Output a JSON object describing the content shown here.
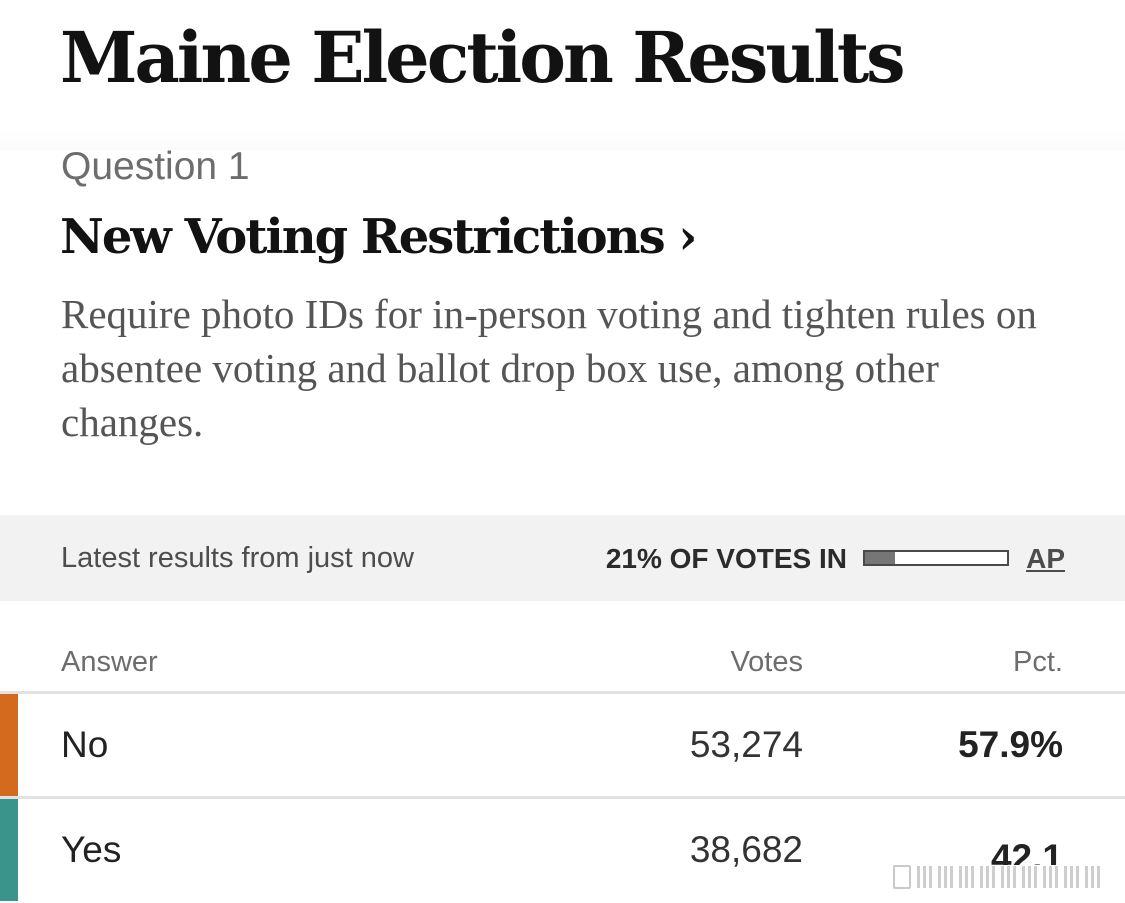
{
  "page": {
    "title": "Maine Election Results"
  },
  "question": {
    "number_label": "Question 1",
    "title": "New Voting Restrictions ›",
    "description": "Require photo IDs for in-person voting and tighten rules on absentee voting and ballot drop box use, among other changes."
  },
  "status": {
    "updated_text": "Latest results from just now",
    "votes_in_text": "21% OF VOTES IN",
    "reporting_fraction": 0.21,
    "source_label": "AP"
  },
  "table": {
    "headers": {
      "answer": "Answer",
      "votes": "Votes",
      "pct": "Pct."
    },
    "rows": [
      {
        "answer": "No",
        "votes": "53,274",
        "pct": "57.9%",
        "color": "#d46a1e"
      },
      {
        "answer": "Yes",
        "votes": "38,682",
        "pct": "42.1",
        "color": "#3a948c"
      }
    ]
  },
  "colors": {
    "no_swatch": "#d46a1e",
    "yes_swatch": "#3a948c",
    "status_background": "#f2f2f2",
    "progress_fill": "#767676"
  },
  "icons": {
    "title_link": "chevron-right-icon",
    "watermark": "watermark-icon"
  }
}
